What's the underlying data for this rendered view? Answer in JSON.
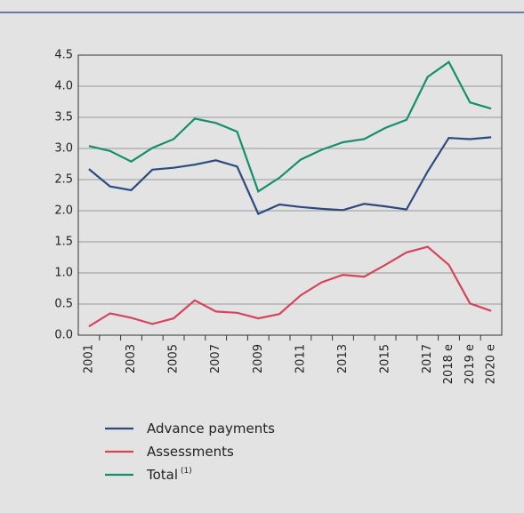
{
  "chart_data": {
    "type": "line",
    "categories": [
      "2001",
      null,
      "2003",
      null,
      "2005",
      null,
      "2007",
      null,
      "2009",
      null,
      "2011",
      null,
      "2013",
      null,
      "2015",
      null,
      "2017",
      "2018 e",
      "2019 e",
      "2020 e"
    ],
    "series": [
      {
        "name": "Advance payments",
        "color": "#2b4a7e",
        "values": [
          2.67,
          2.39,
          2.33,
          2.66,
          2.69,
          2.74,
          2.81,
          2.71,
          1.95,
          2.1,
          2.06,
          2.03,
          2.01,
          2.11,
          2.07,
          2.02,
          2.63,
          3.17,
          3.15,
          3.18
        ]
      },
      {
        "name": "Assessments",
        "color": "#d6435a",
        "values": [
          0.14,
          0.35,
          0.28,
          0.18,
          0.27,
          0.56,
          0.38,
          0.36,
          0.27,
          0.34,
          0.64,
          0.85,
          0.97,
          0.94,
          1.13,
          1.33,
          1.42,
          1.13,
          0.51,
          0.39
        ]
      },
      {
        "name": "Total",
        "note": "(1)",
        "color": "#13906b",
        "values": [
          3.04,
          2.96,
          2.79,
          3.01,
          3.15,
          3.48,
          3.41,
          3.27,
          2.31,
          2.53,
          2.82,
          2.98,
          3.1,
          3.15,
          3.33,
          3.46,
          4.15,
          4.39,
          3.74,
          3.64
        ]
      }
    ],
    "ylim": [
      0,
      4.5
    ],
    "yticks": [
      {
        "value": 0,
        "label": "0.0"
      },
      0.5,
      {
        "value": 1,
        "label": "1.0"
      },
      1.5,
      {
        "value": 2,
        "label": "2.0"
      },
      2.5,
      {
        "value": 3,
        "label": "3.0"
      },
      3.5,
      {
        "value": 4,
        "label": "4.0"
      },
      4.5
    ],
    "grid": true
  }
}
